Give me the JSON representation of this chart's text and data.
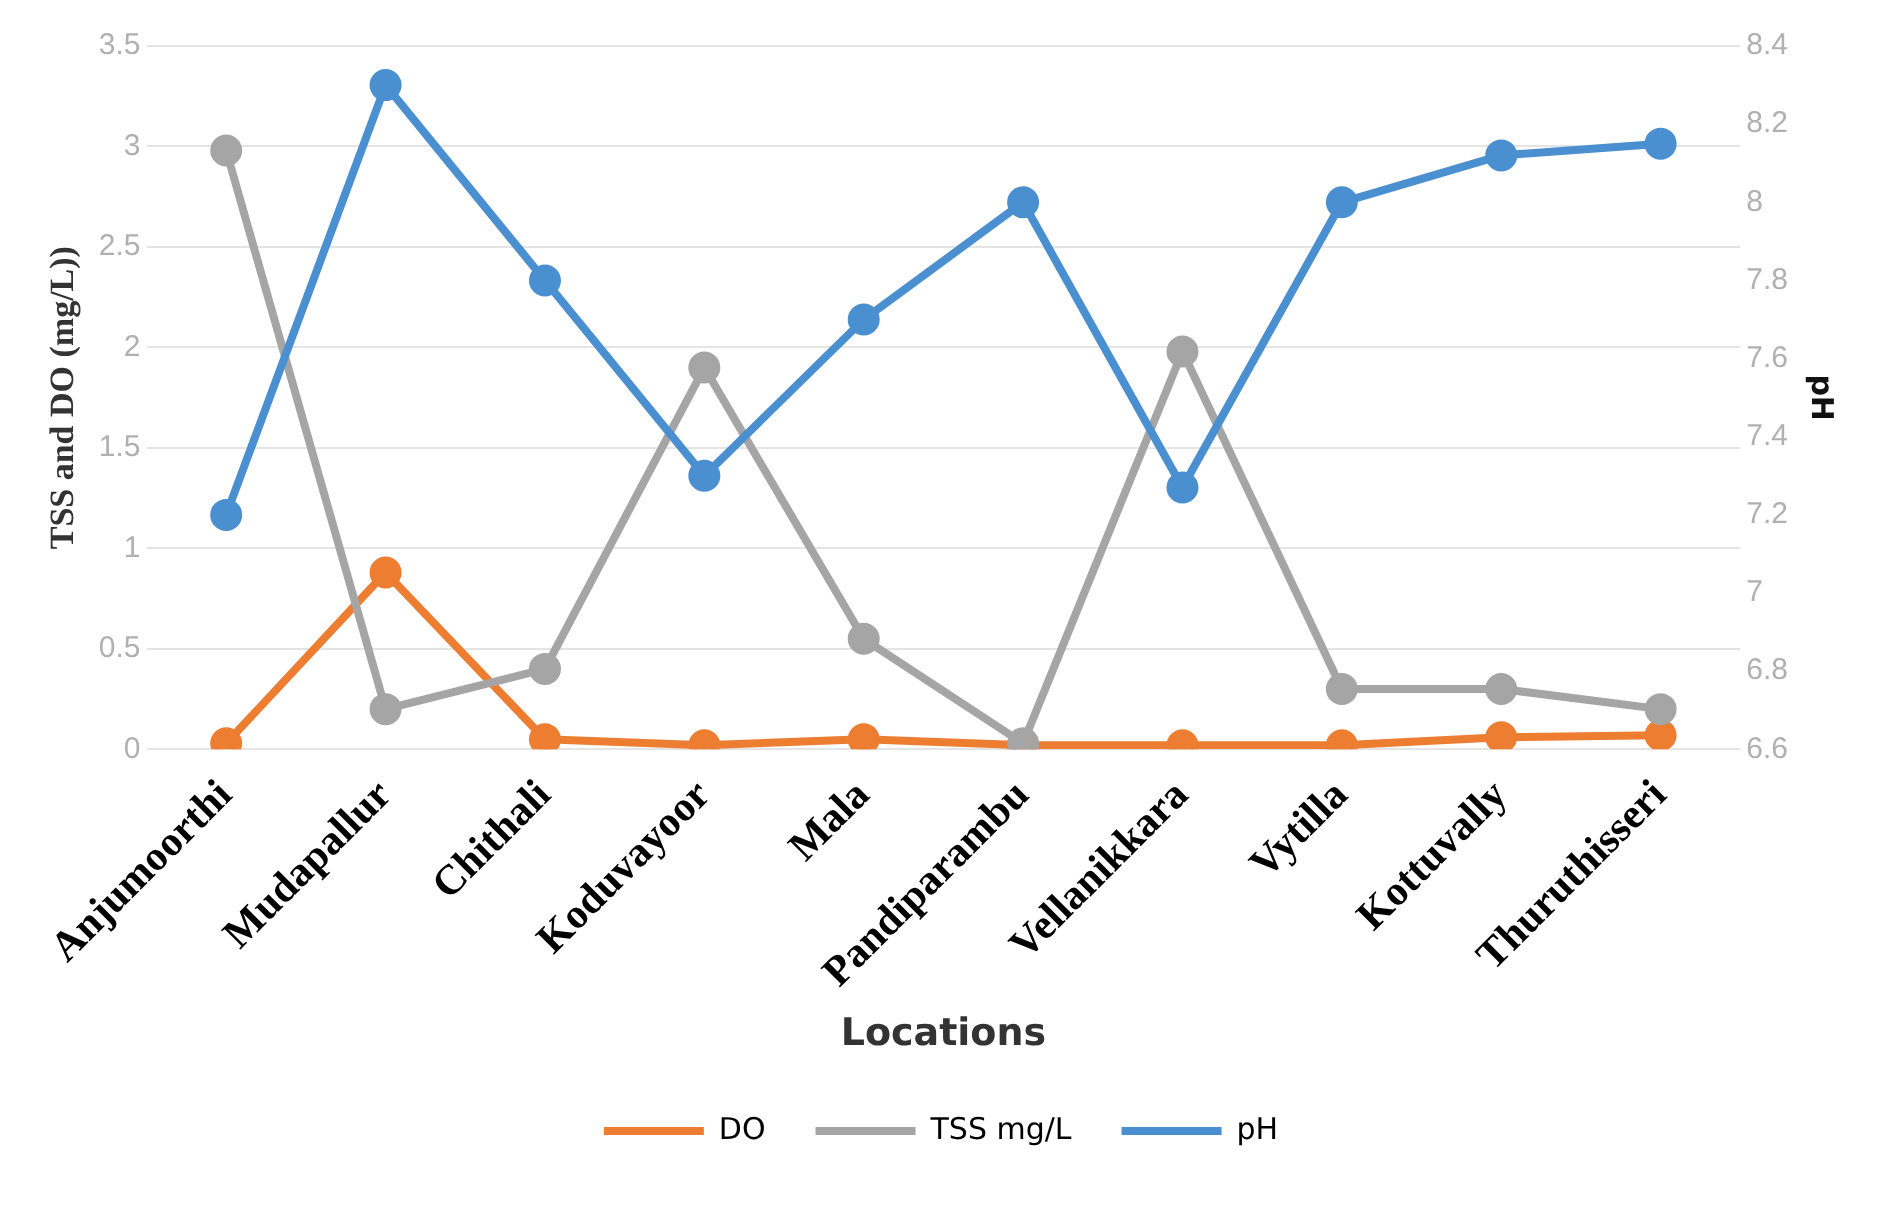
{
  "chart_data": {
    "type": "line",
    "xlabel": "Locations",
    "ylabel": "TSS and DO (mg/L))",
    "y2label": "pH",
    "categories": [
      "Anjumoorthi",
      "Mudapallur",
      "Chithali",
      "Koduvayoor",
      "Mala",
      "Pandiparambu",
      "Vellanikkara",
      "Vytilla",
      "Kottuvally",
      "Thuruthisseri"
    ],
    "series": [
      {
        "name": "DO",
        "color": "#ed7d31",
        "values": [
          0.03,
          0.88,
          0.05,
          0.02,
          0.05,
          0.02,
          0.02,
          0.02,
          0.06,
          0.07
        ]
      },
      {
        "name": "TSS mg/L",
        "color": "#a5a5a5",
        "values": [
          2.98,
          0.2,
          0.4,
          1.9,
          0.55,
          0.03,
          1.98,
          0.3,
          0.3,
          0.2
        ]
      },
      {
        "name": "pH",
        "color": "#4a8fd0",
        "axis": "y2",
        "values": [
          7.2,
          8.3,
          7.8,
          7.3,
          7.7,
          8.0,
          7.27,
          8.0,
          8.12,
          8.15
        ]
      }
    ],
    "ylim": [
      0,
      3.5
    ],
    "yticks": [
      0,
      0.5,
      1,
      1.5,
      2,
      2.5,
      3,
      3.5
    ],
    "y2lim": [
      6.6,
      8.4
    ],
    "y2ticks": [
      6.6,
      6.8,
      7,
      7.2,
      7.4,
      7.6,
      7.8,
      8,
      8.2,
      8.4
    ],
    "grid": "y",
    "legend": "bottom",
    "marker": "circle",
    "line_style": "solid"
  }
}
